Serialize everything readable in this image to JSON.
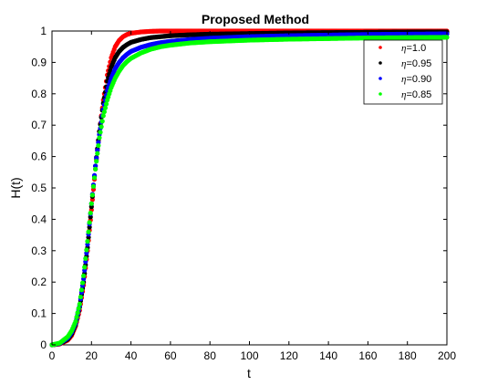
{
  "chart_data": {
    "type": "scatter",
    "title": "Proposed Method",
    "xlabel": "t",
    "ylabel": "H(t)",
    "xlim": [
      0,
      200
    ],
    "ylim": [
      0,
      1
    ],
    "xticks": [
      0,
      20,
      40,
      60,
      80,
      100,
      120,
      140,
      160,
      180,
      200
    ],
    "yticks": [
      0,
      0.1,
      0.2,
      0.3,
      0.4,
      0.5,
      0.6,
      0.7,
      0.8,
      0.9,
      1
    ],
    "ytick_labels": [
      "0",
      "0.1",
      "0.2",
      "0.3",
      "0.4",
      "0.5",
      "0.6",
      "0.7",
      "0.8",
      "0.9",
      "1"
    ],
    "grid": false,
    "legend_position": "top-right",
    "x": [
      0,
      4,
      8,
      10,
      12,
      14,
      16,
      18,
      20,
      22,
      24,
      26,
      28,
      30,
      32,
      34,
      36,
      38,
      40,
      45,
      50,
      55,
      60,
      70,
      80,
      100,
      120,
      140,
      160,
      180,
      200
    ],
    "series": [
      {
        "legend_symbol": "η",
        "legend_value": "=1.0",
        "color": "#ff0000",
        "values": [
          0,
          0.003,
          0.015,
          0.03,
          0.06,
          0.11,
          0.19,
          0.3,
          0.43,
          0.56,
          0.68,
          0.78,
          0.86,
          0.915,
          0.95,
          0.97,
          0.982,
          0.989,
          0.993,
          0.997,
          0.999,
          1.0,
          1.0,
          1.0,
          1.0,
          1.0,
          1.0,
          1.0,
          1.0,
          1.0,
          1.0
        ]
      },
      {
        "legend_symbol": "η",
        "legend_value": "=0.95",
        "color": "#000000",
        "values": [
          0,
          0.004,
          0.018,
          0.035,
          0.065,
          0.12,
          0.2,
          0.31,
          0.44,
          0.57,
          0.68,
          0.77,
          0.84,
          0.885,
          0.915,
          0.935,
          0.948,
          0.957,
          0.964,
          0.973,
          0.979,
          0.982,
          0.985,
          0.988,
          0.99,
          0.992,
          0.994,
          0.995,
          0.996,
          0.997,
          0.997
        ]
      },
      {
        "legend_symbol": "η",
        "legend_value": "=0.90",
        "color": "#0000ff",
        "values": [
          0,
          0.005,
          0.022,
          0.04,
          0.07,
          0.125,
          0.21,
          0.32,
          0.45,
          0.57,
          0.67,
          0.75,
          0.81,
          0.85,
          0.88,
          0.9,
          0.915,
          0.926,
          0.935,
          0.948,
          0.957,
          0.963,
          0.967,
          0.973,
          0.977,
          0.982,
          0.985,
          0.987,
          0.989,
          0.99,
          0.991
        ]
      },
      {
        "legend_symbol": "η",
        "legend_value": "=0.85",
        "color": "#00ff00",
        "values": [
          0,
          0.006,
          0.026,
          0.045,
          0.075,
          0.13,
          0.22,
          0.33,
          0.45,
          0.56,
          0.66,
          0.73,
          0.78,
          0.82,
          0.85,
          0.872,
          0.89,
          0.903,
          0.913,
          0.93,
          0.942,
          0.95,
          0.955,
          0.962,
          0.966,
          0.971,
          0.974,
          0.976,
          0.978,
          0.979,
          0.98
        ]
      }
    ]
  }
}
